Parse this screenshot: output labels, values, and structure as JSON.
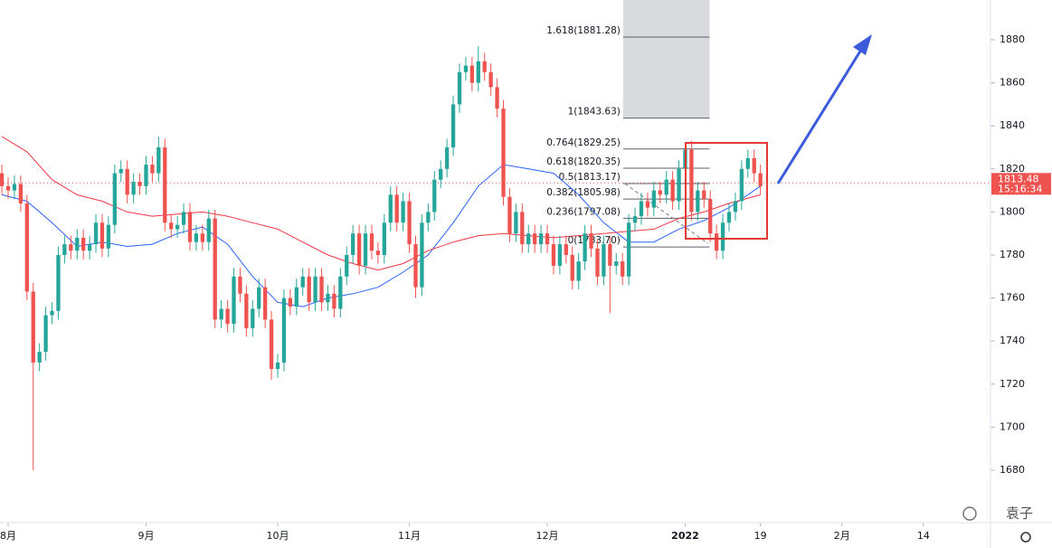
{
  "chart_data": {
    "type": "candlestick",
    "xlim": [
      -0.3,
      157.7
    ],
    "xticks": [
      {
        "value": 1,
        "label": "8月"
      },
      {
        "value": 23,
        "label": "9月"
      },
      {
        "value": 44,
        "label": "10月"
      },
      {
        "value": 65,
        "label": "11月"
      },
      {
        "value": 87,
        "label": "12月"
      },
      {
        "value": 109,
        "label": "2022"
      },
      {
        "value": 121,
        "label": "19"
      },
      {
        "value": 134,
        "label": "2月"
      },
      {
        "value": 147,
        "label": "14"
      }
    ],
    "ylim": [
      1655.6,
      1898.5
    ],
    "yticks": [
      1680,
      1700,
      1720,
      1740,
      1760,
      1780,
      1800,
      1820,
      1840,
      1860,
      1880
    ],
    "up_color": "#26a69a",
    "down_color": "#ef5350",
    "open": [
      1818,
      1812,
      1810,
      1813,
      1804,
      1763,
      1730,
      1735,
      1752,
      1754,
      1780,
      1785,
      1782,
      1788,
      1782,
      1785,
      1795,
      1783,
      1794,
      1818,
      1820,
      1808,
      1814,
      1812,
      1822,
      1818,
      1830,
      1795,
      1792,
      1794,
      1800,
      1786,
      1790,
      1786,
      1797,
      1750,
      1755,
      1748,
      1770,
      1762,
      1746,
      1755,
      1765,
      1750,
      1727,
      1730,
      1760,
      1756,
      1765,
      1770,
      1758,
      1770,
      1758,
      1762,
      1755,
      1770,
      1780,
      1790,
      1775,
      1790,
      1782,
      1780,
      1795,
      1808,
      1795,
      1805,
      1785,
      1765,
      1795,
      1800,
      1815,
      1820,
      1830,
      1850,
      1865,
      1868,
      1860,
      1870,
      1865,
      1858,
      1848,
      1807,
      1790,
      1800,
      1785,
      1790,
      1785,
      1790,
      1785,
      1775,
      1785,
      1780,
      1768,
      1777,
      1790,
      1783,
      1770,
      1785,
      1775,
      1777,
      1770,
      1795,
      1798,
      1805,
      1802,
      1810,
      1808,
      1815,
      1805,
      1820,
      1829,
      1800,
      1810,
      1806,
      1790,
      1782,
      1795,
      1800,
      1805,
      1820,
      1825,
      1818
    ],
    "high": [
      1822,
      1816,
      1817,
      1817,
      1808,
      1767,
      1739,
      1756,
      1758,
      1784,
      1789,
      1789,
      1792,
      1792,
      1789,
      1799,
      1799,
      1798,
      1822,
      1824,
      1824,
      1818,
      1818,
      1826,
      1826,
      1835,
      1834,
      1799,
      1798,
      1804,
      1804,
      1794,
      1794,
      1801,
      1801,
      1759,
      1759,
      1774,
      1774,
      1766,
      1759,
      1769,
      1769,
      1754,
      1734,
      1764,
      1764,
      1769,
      1774,
      1774,
      1774,
      1774,
      1766,
      1766,
      1774,
      1784,
      1794,
      1794,
      1794,
      1794,
      1786,
      1799,
      1812,
      1812,
      1809,
      1809,
      1789,
      1799,
      1804,
      1819,
      1824,
      1834,
      1854,
      1869,
      1872,
      1872,
      1877,
      1874,
      1869,
      1862,
      1852,
      1811,
      1804,
      1804,
      1794,
      1794,
      1794,
      1794,
      1789,
      1789,
      1789,
      1784,
      1781,
      1794,
      1794,
      1787,
      1789,
      1789,
      1781,
      1781,
      1799,
      1802,
      1809,
      1809,
      1814,
      1814,
      1819,
      1819,
      1824,
      1831,
      1833,
      1814,
      1814,
      1810,
      1794,
      1799,
      1804,
      1809,
      1824,
      1829,
      1829,
      1822
    ],
    "low": [
      1808,
      1806,
      1806,
      1800,
      1759,
      1680,
      1726,
      1731,
      1748,
      1750,
      1776,
      1778,
      1778,
      1778,
      1778,
      1781,
      1779,
      1779,
      1790,
      1814,
      1804,
      1804,
      1808,
      1808,
      1814,
      1814,
      1791,
      1788,
      1788,
      1790,
      1782,
      1782,
      1782,
      1782,
      1746,
      1746,
      1744,
      1744,
      1758,
      1742,
      1742,
      1751,
      1746,
      1722,
      1723,
      1726,
      1752,
      1752,
      1761,
      1754,
      1754,
      1754,
      1754,
      1751,
      1751,
      1766,
      1776,
      1771,
      1771,
      1778,
      1776,
      1776,
      1791,
      1791,
      1791,
      1781,
      1760,
      1761,
      1791,
      1796,
      1811,
      1816,
      1826,
      1846,
      1861,
      1856,
      1856,
      1861,
      1854,
      1844,
      1803,
      1786,
      1786,
      1781,
      1781,
      1781,
      1781,
      1781,
      1771,
      1771,
      1776,
      1764,
      1764,
      1773,
      1779,
      1766,
      1766,
      1753,
      1771,
      1766,
      1766,
      1791,
      1794,
      1798,
      1798,
      1804,
      1804,
      1801,
      1801,
      1816,
      1796,
      1796,
      1802,
      1786,
      1778,
      1778,
      1791,
      1796,
      1801,
      1816,
      1814,
      1808
    ],
    "close": [
      1812,
      1810,
      1813,
      1804,
      1763,
      1730,
      1735,
      1752,
      1754,
      1780,
      1785,
      1782,
      1788,
      1782,
      1785,
      1795,
      1783,
      1794,
      1818,
      1820,
      1808,
      1814,
      1812,
      1822,
      1818,
      1830,
      1795,
      1792,
      1794,
      1800,
      1786,
      1790,
      1786,
      1797,
      1750,
      1755,
      1748,
      1770,
      1762,
      1746,
      1755,
      1765,
      1750,
      1727,
      1730,
      1760,
      1756,
      1765,
      1770,
      1758,
      1770,
      1758,
      1762,
      1755,
      1770,
      1780,
      1790,
      1775,
      1790,
      1782,
      1780,
      1795,
      1808,
      1795,
      1805,
      1785,
      1765,
      1795,
      1800,
      1815,
      1820,
      1830,
      1850,
      1865,
      1868,
      1860,
      1870,
      1865,
      1858,
      1848,
      1807,
      1790,
      1800,
      1785,
      1790,
      1785,
      1790,
      1785,
      1775,
      1785,
      1780,
      1768,
      1777,
      1790,
      1783,
      1770,
      1785,
      1775,
      1777,
      1770,
      1795,
      1798,
      1805,
      1802,
      1810,
      1808,
      1815,
      1805,
      1820,
      1829,
      1800,
      1810,
      1806,
      1790,
      1782,
      1795,
      1800,
      1805,
      1820,
      1825,
      1818,
      1812
    ],
    "lines": [
      {
        "color": "#2962ff",
        "x": [
          0,
          4,
          8,
          12,
          16,
          20,
          24,
          28,
          32,
          36,
          40,
          44,
          48,
          52,
          56,
          60,
          64,
          68,
          72,
          76,
          80,
          84,
          88,
          92,
          96,
          100,
          104,
          108,
          112,
          116,
          121
        ],
        "values": [
          1808,
          1805,
          1795,
          1784,
          1786,
          1784,
          1785,
          1790,
          1793,
          1785,
          1770,
          1758,
          1756,
          1760,
          1762,
          1765,
          1772,
          1780,
          1795,
          1812,
          1822,
          1820,
          1818,
          1808,
          1795,
          1786,
          1786,
          1792,
          1796,
          1802,
          1812
        ]
      },
      {
        "color": "#f23645",
        "x": [
          0,
          4,
          8,
          12,
          16,
          20,
          24,
          28,
          32,
          36,
          40,
          44,
          48,
          52,
          56,
          60,
          64,
          68,
          72,
          76,
          80,
          84,
          88,
          92,
          96,
          100,
          104,
          108,
          112,
          116,
          121
        ],
        "values": [
          1835,
          1828,
          1815,
          1808,
          1805,
          1800,
          1798,
          1799,
          1800,
          1798,
          1795,
          1792,
          1786,
          1780,
          1776,
          1773,
          1776,
          1782,
          1786,
          1789,
          1790,
          1789,
          1788,
          1789,
          1790,
          1791,
          1792,
          1797,
          1800,
          1804,
          1808
        ]
      }
    ],
    "fib_range": [
      99.1,
      112.9
    ],
    "fib_levels": [
      {
        "value": 1881.28,
        "label": "1.618(1881.28)"
      },
      {
        "value": 1843.63,
        "label": "1(1843.63)"
      },
      {
        "value": 1829.25,
        "label": "0.764(1829.25)"
      },
      {
        "value": 1820.35,
        "label": "0.618(1820.35)"
      },
      {
        "value": 1813.17,
        "label": "0.5(1813.17)"
      },
      {
        "value": 1805.98,
        "label": "0.382(1805.98)"
      },
      {
        "value": 1797.08,
        "label": "0.236(1797.08)"
      },
      {
        "value": 1783.7,
        "label": "0(1783.70)"
      }
    ],
    "last_price": 1813.48,
    "countdown": "15:16:34",
    "watermark": "袁子"
  }
}
